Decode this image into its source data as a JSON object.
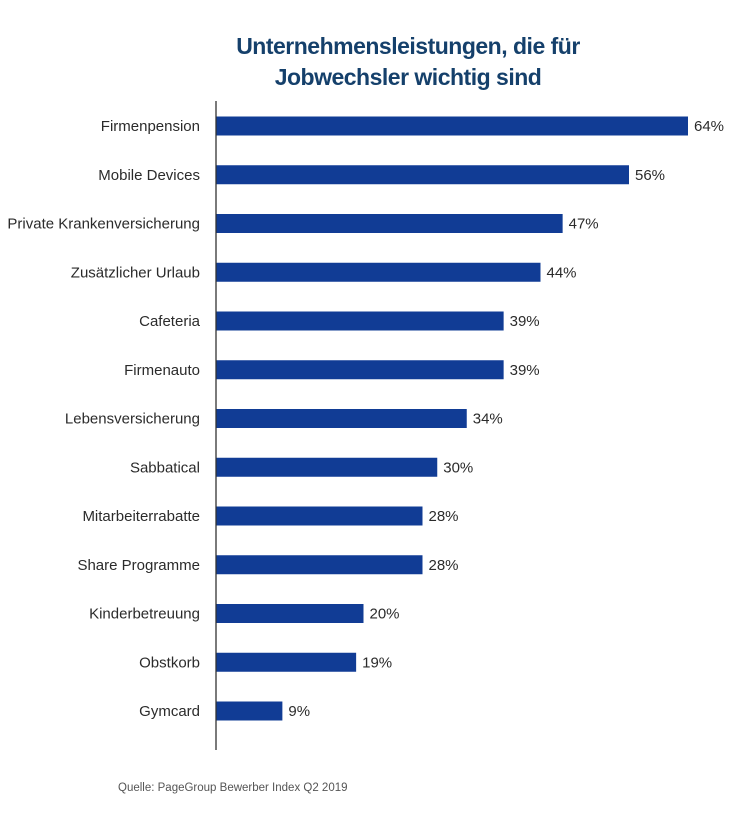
{
  "chart_data": {
    "type": "bar",
    "orientation": "horizontal",
    "title_lines": [
      "Unternehmensleistungen, die für",
      "Jobwechsler wichtig sind"
    ],
    "categories": [
      "Firmenpension",
      "Mobile Devices",
      "Private Krankenversicherung",
      "Zusätzlicher Urlaub",
      "Cafeteria",
      "Firmenauto",
      "Lebensversicherung",
      "Sabbatical",
      "Mitarbeiterrabatte",
      "Share Programme",
      "Kinderbetreuung",
      "Obstkorb",
      "Gymcard"
    ],
    "values": [
      64,
      56,
      47,
      44,
      39,
      39,
      34,
      30,
      28,
      28,
      20,
      19,
      9
    ],
    "value_labels": [
      "64%",
      "56%",
      "47%",
      "44%",
      "39%",
      "39%",
      "34%",
      "30%",
      "28%",
      "28%",
      "20%",
      "19%",
      "9%"
    ],
    "unit": "%",
    "xlim": [
      0,
      64
    ],
    "grid": false,
    "legend": "none",
    "bar_color": "#113c95"
  },
  "source": "Quelle: PageGroup Bewerber Index Q2 2019"
}
